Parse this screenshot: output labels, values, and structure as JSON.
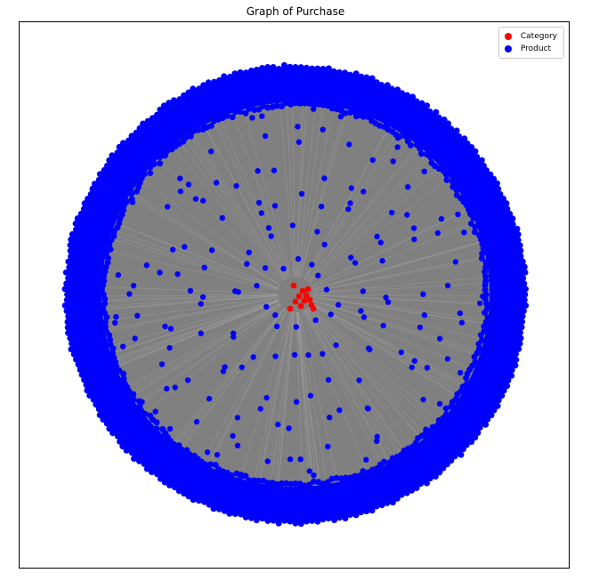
{
  "title": "Graph of Purchase",
  "legend": {
    "category_label": "Category",
    "product_label": "Product"
  },
  "colors": {
    "category": "#ff0000",
    "product": "#0000ff",
    "edge": "#808080"
  },
  "graph": {
    "layout": "spring",
    "category_nodes": 12,
    "interior_product_nodes": 180
  }
}
